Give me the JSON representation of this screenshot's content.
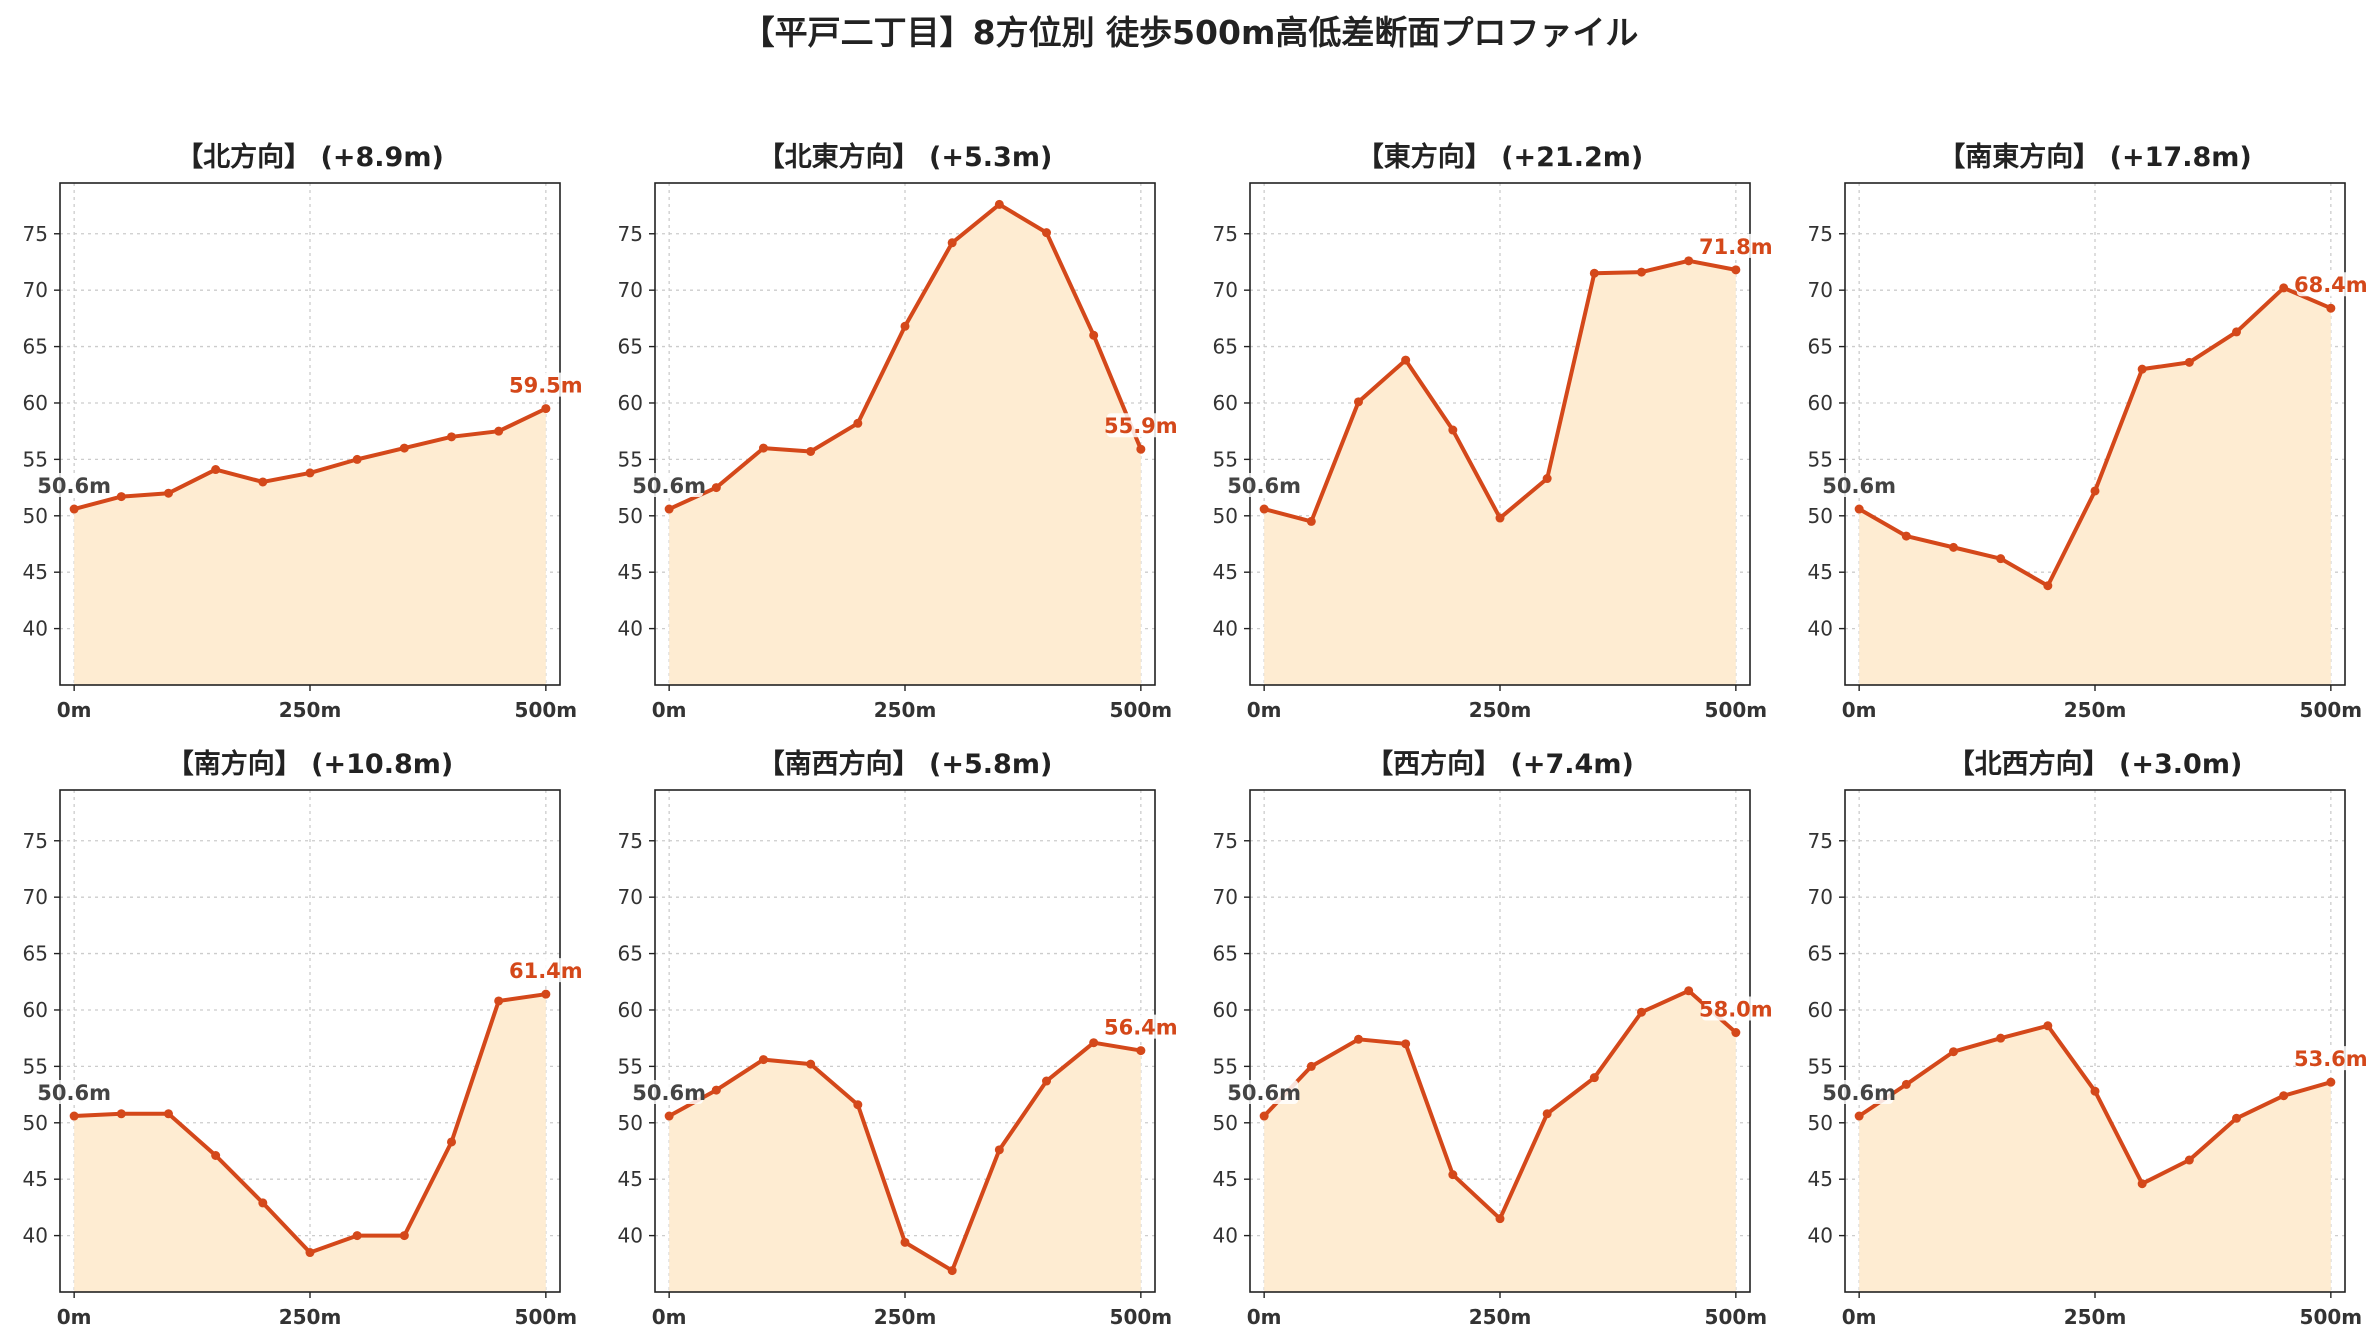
{
  "chart_title": "【平戸二丁目】8方位別 徒歩500m高低差断面プロファイル",
  "colors": {
    "line": "#d4481a",
    "fill": "#feecd2",
    "start_label": "#444444",
    "end_label": "#d4481a",
    "grid": "#cccccc"
  },
  "chart_data": [
    {
      "type": "area",
      "title": "【北方向】 (+8.9m)",
      "x": [
        0,
        50,
        100,
        150,
        200,
        250,
        300,
        350,
        400,
        450,
        500
      ],
      "y": [
        50.6,
        51.7,
        52.0,
        54.1,
        53.0,
        53.8,
        55.0,
        56.0,
        57.0,
        57.5,
        59.5
      ],
      "start_label": "50.6m",
      "end_label": "59.5m",
      "xticks": [
        0,
        250,
        500
      ],
      "xtick_labels": [
        "0m",
        "250m",
        "500m"
      ],
      "xlim": [
        -15,
        515
      ],
      "yticks": [
        40,
        45,
        50,
        55,
        60,
        65,
        70,
        75
      ],
      "ylim": [
        35,
        79.5
      ],
      "grid": true
    },
    {
      "type": "area",
      "title": "【北東方向】 (+5.3m)",
      "x": [
        0,
        50,
        100,
        150,
        200,
        250,
        300,
        350,
        400,
        450,
        500
      ],
      "y": [
        50.6,
        52.5,
        56.0,
        55.7,
        58.2,
        66.8,
        74.2,
        77.6,
        75.1,
        66.0,
        55.9
      ],
      "start_label": "50.6m",
      "end_label": "55.9m",
      "xticks": [
        0,
        250,
        500
      ],
      "xtick_labels": [
        "0m",
        "250m",
        "500m"
      ],
      "xlim": [
        -15,
        515
      ],
      "yticks": [
        40,
        45,
        50,
        55,
        60,
        65,
        70,
        75
      ],
      "ylim": [
        35,
        79.5
      ],
      "grid": true
    },
    {
      "type": "area",
      "title": "【東方向】 (+21.2m)",
      "x": [
        0,
        50,
        100,
        150,
        200,
        250,
        300,
        350,
        400,
        450,
        500
      ],
      "y": [
        50.6,
        49.5,
        60.1,
        63.8,
        57.6,
        49.8,
        53.3,
        71.5,
        71.6,
        72.6,
        71.8
      ],
      "start_label": "50.6m",
      "end_label": "71.8m",
      "xticks": [
        0,
        250,
        500
      ],
      "xtick_labels": [
        "0m",
        "250m",
        "500m"
      ],
      "xlim": [
        -15,
        515
      ],
      "yticks": [
        40,
        45,
        50,
        55,
        60,
        65,
        70,
        75
      ],
      "ylim": [
        35,
        79.5
      ],
      "grid": true
    },
    {
      "type": "area",
      "title": "【南東方向】 (+17.8m)",
      "x": [
        0,
        50,
        100,
        150,
        200,
        250,
        300,
        350,
        400,
        450,
        500
      ],
      "y": [
        50.6,
        48.2,
        47.2,
        46.2,
        43.8,
        52.2,
        63.0,
        63.6,
        66.3,
        70.2,
        68.4
      ],
      "start_label": "50.6m",
      "end_label": "68.4m",
      "xticks": [
        0,
        250,
        500
      ],
      "xtick_labels": [
        "0m",
        "250m",
        "500m"
      ],
      "xlim": [
        -15,
        515
      ],
      "yticks": [
        40,
        45,
        50,
        55,
        60,
        65,
        70,
        75
      ],
      "ylim": [
        35,
        79.5
      ],
      "grid": true
    },
    {
      "type": "area",
      "title": "【南方向】 (+10.8m)",
      "x": [
        0,
        50,
        100,
        150,
        200,
        250,
        300,
        350,
        400,
        450,
        500
      ],
      "y": [
        50.6,
        50.8,
        50.8,
        47.1,
        42.9,
        38.5,
        40.0,
        40.0,
        48.3,
        60.8,
        61.4
      ],
      "start_label": "50.6m",
      "end_label": "61.4m",
      "xticks": [
        0,
        250,
        500
      ],
      "xtick_labels": [
        "0m",
        "250m",
        "500m"
      ],
      "xlim": [
        -15,
        515
      ],
      "yticks": [
        40,
        45,
        50,
        55,
        60,
        65,
        70,
        75
      ],
      "ylim": [
        35,
        79.5
      ],
      "grid": true
    },
    {
      "type": "area",
      "title": "【南西方向】 (+5.8m)",
      "x": [
        0,
        50,
        100,
        150,
        200,
        250,
        300,
        350,
        400,
        450,
        500
      ],
      "y": [
        50.6,
        52.9,
        55.6,
        55.2,
        51.6,
        39.4,
        36.9,
        47.6,
        53.7,
        57.1,
        56.4
      ],
      "start_label": "50.6m",
      "end_label": "56.4m",
      "xticks": [
        0,
        250,
        500
      ],
      "xtick_labels": [
        "0m",
        "250m",
        "500m"
      ],
      "xlim": [
        -15,
        515
      ],
      "yticks": [
        40,
        45,
        50,
        55,
        60,
        65,
        70,
        75
      ],
      "ylim": [
        35,
        79.5
      ],
      "grid": true
    },
    {
      "type": "area",
      "title": "【西方向】 (+7.4m)",
      "x": [
        0,
        50,
        100,
        150,
        200,
        250,
        300,
        350,
        400,
        450,
        500
      ],
      "y": [
        50.6,
        55.0,
        57.4,
        57.0,
        45.4,
        41.5,
        50.8,
        54.0,
        59.8,
        61.7,
        58.0
      ],
      "start_label": "50.6m",
      "end_label": "58.0m",
      "xticks": [
        0,
        250,
        500
      ],
      "xtick_labels": [
        "0m",
        "250m",
        "500m"
      ],
      "xlim": [
        -15,
        515
      ],
      "yticks": [
        40,
        45,
        50,
        55,
        60,
        65,
        70,
        75
      ],
      "ylim": [
        35,
        79.5
      ],
      "grid": true
    },
    {
      "type": "area",
      "title": "【北西方向】 (+3.0m)",
      "x": [
        0,
        50,
        100,
        150,
        200,
        250,
        300,
        350,
        400,
        450,
        500
      ],
      "y": [
        50.6,
        53.4,
        56.3,
        57.5,
        58.6,
        52.8,
        44.6,
        46.7,
        50.4,
        52.4,
        53.6
      ],
      "start_label": "50.6m",
      "end_label": "53.6m",
      "xticks": [
        0,
        250,
        500
      ],
      "xtick_labels": [
        "0m",
        "250m",
        "500m"
      ],
      "xlim": [
        -15,
        515
      ],
      "yticks": [
        40,
        45,
        50,
        55,
        60,
        65,
        70,
        75
      ],
      "ylim": [
        35,
        79.5
      ],
      "grid": true
    }
  ]
}
